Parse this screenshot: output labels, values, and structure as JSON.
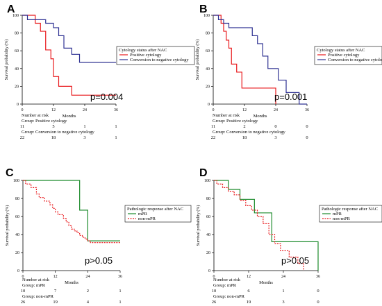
{
  "chart_data": [
    {
      "type": "line",
      "panel": "A",
      "xlabel": "Months",
      "ylabel": "Survival probability (%)",
      "xlim": [
        0,
        36
      ],
      "ylim": [
        0,
        100
      ],
      "xticks": [
        0,
        12,
        24,
        36
      ],
      "yticks": [
        0,
        20,
        40,
        60,
        80,
        100
      ],
      "legend": {
        "title": "Cytology status after NAC",
        "placement": "right",
        "entries": [
          {
            "name": "Positive cytology",
            "color": "#e8191c"
          },
          {
            "name": "Conversion to negative cytology",
            "color": "#2e3192"
          }
        ]
      },
      "pvalue": "p=0.004",
      "series": [
        {
          "name": "Positive cytology",
          "color": "#e8191c",
          "dash": "solid",
          "x": [
            0,
            5,
            5,
            7,
            7,
            9,
            9,
            11,
            11,
            12,
            12,
            14,
            14,
            19,
            19,
            36
          ],
          "y": [
            100,
            100,
            91,
            91,
            82,
            82,
            61,
            61,
            51,
            51,
            31,
            31,
            20,
            20,
            10,
            10
          ]
        },
        {
          "name": "Conversion to negative cytology",
          "color": "#2e3192",
          "dash": "solid",
          "x": [
            0,
            2,
            2,
            9,
            9,
            12,
            12,
            14,
            14,
            16,
            16,
            19,
            19,
            22,
            22,
            36
          ],
          "y": [
            100,
            100,
            95,
            95,
            91,
            91,
            86,
            86,
            77,
            77,
            63,
            63,
            56,
            56,
            47,
            47
          ]
        }
      ],
      "risk_table": {
        "title": "Number at risk",
        "groups": [
          {
            "label": "Group: Positive cytology",
            "counts": [
              "11",
              "5",
              "1",
              "1"
            ]
          },
          {
            "label": "Group: Conversion to negative cytology",
            "counts": [
              "22",
              "18",
              "3",
              "1"
            ]
          }
        ]
      }
    },
    {
      "type": "line",
      "panel": "B",
      "xlabel": "Months",
      "ylabel": "Survival probability (%)",
      "xlim": [
        0,
        36
      ],
      "ylim": [
        0,
        100
      ],
      "xticks": [
        0,
        12,
        24,
        36
      ],
      "yticks": [
        0,
        20,
        40,
        60,
        80,
        100
      ],
      "legend": {
        "title": "Cytology status after NAC",
        "placement": "right",
        "entries": [
          {
            "name": "Positive cytology",
            "color": "#e8191c"
          },
          {
            "name": "Conversion to negative cytology",
            "color": "#2e3192"
          }
        ]
      },
      "pvalue": "p=0.001",
      "series": [
        {
          "name": "Positive cytology",
          "color": "#e8191c",
          "dash": "solid",
          "x": [
            0,
            3,
            3,
            4,
            4,
            5,
            5,
            6,
            6,
            7,
            7,
            9,
            9,
            11,
            11,
            24,
            24
          ],
          "y": [
            100,
            100,
            91,
            91,
            82,
            82,
            72,
            72,
            63,
            63,
            45,
            45,
            36,
            36,
            18,
            18,
            0
          ]
        },
        {
          "name": "Conversion to negative cytology",
          "color": "#2e3192",
          "dash": "solid",
          "x": [
            0,
            2,
            2,
            4,
            4,
            6,
            6,
            15,
            15,
            17,
            17,
            19,
            19,
            21,
            21,
            25,
            25,
            28,
            28,
            33,
            33,
            36
          ],
          "y": [
            100,
            100,
            95,
            95,
            91,
            91,
            86,
            86,
            77,
            77,
            68,
            68,
            54,
            54,
            40,
            40,
            27,
            27,
            13,
            13,
            0,
            0
          ]
        }
      ],
      "risk_table": {
        "title": "Number at risk",
        "groups": [
          {
            "label": "Group: Positive cytology",
            "counts": [
              "11",
              "2",
              "0",
              "0"
            ]
          },
          {
            "label": "Group: Conversion to negative cytology",
            "counts": [
              "22",
              "18",
              "3",
              "0"
            ]
          }
        ]
      }
    },
    {
      "type": "line",
      "panel": "C",
      "xlabel": "Months",
      "ylabel": "Survival probability (%)",
      "xlim": [
        0,
        36
      ],
      "ylim": [
        0,
        100
      ],
      "xticks": [
        0,
        12,
        24,
        36
      ],
      "yticks": [
        0,
        20,
        40,
        60,
        80,
        100
      ],
      "legend": {
        "title": "Pathologic response after NAC",
        "placement": "right",
        "entries": [
          {
            "name": "mPR",
            "color": "#1a8a2a"
          },
          {
            "name": "non-mPR",
            "color": "#e8191c"
          }
        ]
      },
      "pvalue": "p>0.05",
      "series": [
        {
          "name": "mPR",
          "color": "#1a8a2a",
          "dash": "solid",
          "x": [
            0,
            21,
            21,
            24,
            24,
            36
          ],
          "y": [
            100,
            100,
            67,
            67,
            33,
            33
          ]
        },
        {
          "name": "non-mPR",
          "color": "#e8191c",
          "dash": "dashed",
          "x": [
            0,
            1,
            1,
            3,
            3,
            5,
            5,
            6,
            6,
            8,
            8,
            10,
            10,
            11,
            11,
            12,
            12,
            13,
            13,
            15,
            15,
            16,
            16,
            17,
            17,
            18,
            18,
            19,
            19,
            20,
            20,
            21,
            21,
            22,
            22,
            23,
            23,
            24,
            24,
            25,
            25,
            36
          ],
          "y": [
            100,
            100,
            96,
            96,
            92,
            92,
            85,
            85,
            81,
            81,
            77,
            77,
            73,
            73,
            69,
            69,
            65,
            65,
            62,
            62,
            58,
            58,
            54,
            54,
            50,
            50,
            46,
            46,
            44,
            44,
            42,
            42,
            39,
            39,
            37,
            37,
            35,
            35,
            33,
            33,
            31,
            31
          ]
        }
      ],
      "risk_table": {
        "title": "Number at risk",
        "groups": [
          {
            "label": "Group: mPR",
            "counts": [
              "10",
              "7",
              "2",
              "1"
            ]
          },
          {
            "label": "Group: non-mPR",
            "counts": [
              "26",
              "19",
              "4",
              "1"
            ]
          }
        ]
      }
    },
    {
      "type": "line",
      "panel": "D",
      "xlabel": "Months",
      "ylabel": "Survival probability (%)",
      "xlim": [
        0,
        36
      ],
      "ylim": [
        0,
        100
      ],
      "xticks": [
        0,
        12,
        24,
        36
      ],
      "yticks": [
        0,
        20,
        40,
        60,
        80,
        100
      ],
      "legend": {
        "title": "Pathologic response after NAC",
        "placement": "right",
        "entries": [
          {
            "name": "mPR",
            "color": "#1a8a2a"
          },
          {
            "name": "non-mPR",
            "color": "#e8191c"
          }
        ]
      },
      "pvalue": "p>0.05",
      "series": [
        {
          "name": "mPR",
          "color": "#1a8a2a",
          "dash": "solid",
          "x": [
            0,
            5,
            5,
            9,
            9,
            14,
            14,
            20,
            20,
            26,
            26,
            36,
            36
          ],
          "y": [
            100,
            100,
            90,
            90,
            79,
            79,
            64,
            64,
            32,
            32,
            32,
            32,
            0
          ]
        },
        {
          "name": "non-mPR",
          "color": "#e8191c",
          "dash": "dashed",
          "x": [
            0,
            1,
            1,
            3,
            3,
            5,
            5,
            7,
            7,
            9,
            9,
            11,
            11,
            13,
            13,
            15,
            15,
            17,
            17,
            19,
            19,
            21,
            21,
            23,
            23,
            26,
            26,
            29,
            29,
            31,
            31
          ],
          "y": [
            100,
            100,
            96,
            96,
            92,
            92,
            88,
            88,
            84,
            84,
            78,
            78,
            72,
            72,
            67,
            67,
            60,
            60,
            52,
            52,
            40,
            40,
            30,
            30,
            22,
            22,
            15,
            15,
            8,
            8,
            0
          ]
        }
      ],
      "risk_table": {
        "title": "Number at risk",
        "groups": [
          {
            "label": "Group: mPR",
            "counts": [
              "10",
              "6",
              "1",
              "0"
            ]
          },
          {
            "label": "Group: non-mPR",
            "counts": [
              "26",
              "19",
              "3",
              "0"
            ]
          }
        ]
      }
    }
  ]
}
